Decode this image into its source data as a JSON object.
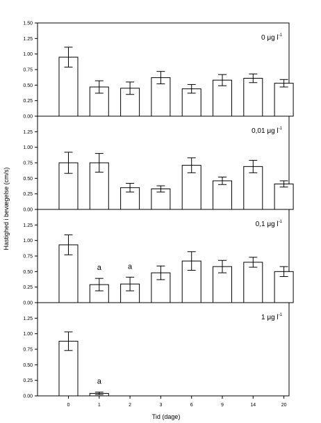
{
  "chart_data": {
    "type": "bar",
    "xlabel": "Tid (dage)",
    "ylabel": "Hastighed i bevægelse (cm/s)",
    "categories": [
      "0",
      "1",
      "2",
      "3",
      "6",
      "9",
      "14",
      "20"
    ],
    "y_ticks": [
      "0.00",
      "0.25",
      "0.50",
      "0.75",
      "1.00",
      "1.25",
      "1.50"
    ],
    "panels": [
      {
        "concentration": "0 μg l",
        "superscript": "-1",
        "ylim": [
          0,
          1.5
        ],
        "values": [
          0.95,
          0.47,
          0.45,
          0.62,
          0.44,
          0.58,
          0.61,
          0.53
        ],
        "errors": [
          0.16,
          0.1,
          0.1,
          0.1,
          0.07,
          0.09,
          0.07,
          0.06
        ],
        "annotations": [
          "",
          "",
          "",
          "",
          "",
          "",
          "",
          ""
        ]
      },
      {
        "concentration": "0,01 μg l",
        "superscript": "-1",
        "ylim": [
          0,
          1.5
        ],
        "values": [
          0.75,
          0.75,
          0.35,
          0.33,
          0.71,
          0.46,
          0.69,
          0.41
        ],
        "errors": [
          0.17,
          0.15,
          0.07,
          0.05,
          0.12,
          0.06,
          0.1,
          0.05
        ],
        "annotations": [
          "",
          "",
          "",
          "",
          "",
          "",
          "",
          ""
        ]
      },
      {
        "concentration": "0,1 μg l",
        "superscript": "-1",
        "ylim": [
          0,
          1.5
        ],
        "values": [
          0.93,
          0.29,
          0.3,
          0.48,
          0.67,
          0.58,
          0.65,
          0.5
        ],
        "errors": [
          0.16,
          0.1,
          0.11,
          0.11,
          0.15,
          0.1,
          0.08,
          0.08
        ],
        "annotations": [
          "",
          "a",
          "a",
          "",
          "",
          "",
          "",
          ""
        ]
      },
      {
        "concentration": "1 μg l",
        "superscript": "-1",
        "ylim": [
          0,
          1.5
        ],
        "values": [
          0.88,
          0.04,
          0,
          0,
          0,
          0,
          0,
          0
        ],
        "errors": [
          0.15,
          0.02,
          0,
          0,
          0,
          0,
          0,
          0
        ],
        "annotations": [
          "",
          "a",
          "",
          "",
          "",
          "",
          "",
          ""
        ]
      }
    ],
    "grid": false,
    "legend": "none"
  }
}
